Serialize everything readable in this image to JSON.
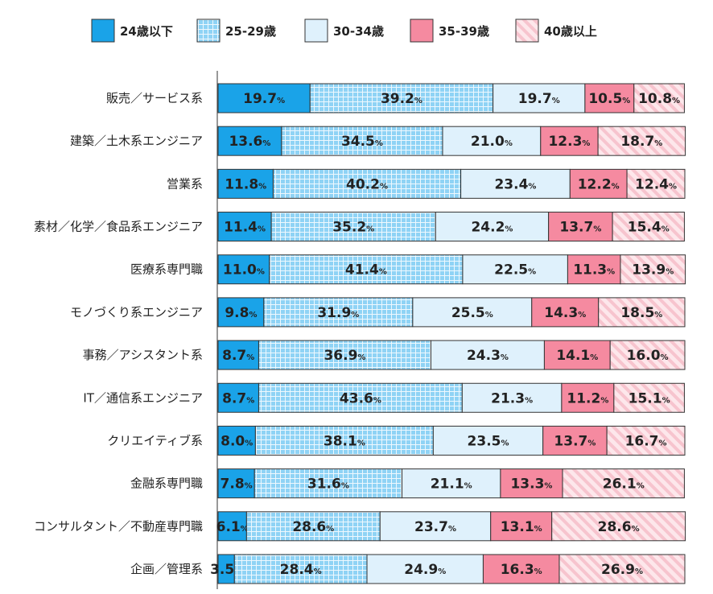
{
  "chart_data": {
    "type": "bar",
    "orientation": "horizontal",
    "stacked": true,
    "normalized": true,
    "legend_position": "top",
    "grid": false,
    "categories": [
      "販売／サービス系",
      "建築／土木系エンジニア",
      "営業系",
      "素材／化学／食品系エンジニア",
      "医療系専門職",
      "モノづくり系エンジニア",
      "事務／アシスタント系",
      "IT／通信系エンジニア",
      "クリエイティブ系",
      "金融系専門職",
      "コンサルタント／不動産専門職",
      "企画／管理系"
    ],
    "series": [
      {
        "name": "24歳以下",
        "color": "#1aa3e8",
        "pattern": "solid",
        "values": [
          19.7,
          13.6,
          11.8,
          11.4,
          11.0,
          9.8,
          8.7,
          8.7,
          8.0,
          7.8,
          6.1,
          3.5
        ]
      },
      {
        "name": "25-29歳",
        "color": "#8fd3f5",
        "pattern": "grid",
        "values": [
          39.2,
          34.5,
          40.2,
          35.2,
          41.4,
          31.9,
          36.9,
          43.6,
          38.1,
          31.6,
          28.6,
          28.4
        ]
      },
      {
        "name": "30-34歳",
        "color": "#dff1fc",
        "pattern": "solid",
        "values": [
          19.7,
          21.0,
          23.4,
          24.2,
          22.5,
          25.5,
          24.3,
          21.3,
          23.5,
          21.1,
          23.7,
          24.9
        ]
      },
      {
        "name": "35-39歳",
        "color": "#f58aa0",
        "pattern": "solid",
        "values": [
          10.5,
          12.3,
          12.2,
          13.7,
          11.3,
          14.3,
          14.1,
          11.2,
          13.7,
          13.3,
          13.1,
          16.3
        ]
      },
      {
        "name": "40歳以上",
        "color": "#fbd8df",
        "pattern": "diagonal",
        "values": [
          10.8,
          18.7,
          12.4,
          15.4,
          13.9,
          18.5,
          16.0,
          15.1,
          16.7,
          26.1,
          28.6,
          26.9
        ]
      }
    ],
    "value_suffix": "%",
    "xlim": [
      0,
      100
    ]
  }
}
